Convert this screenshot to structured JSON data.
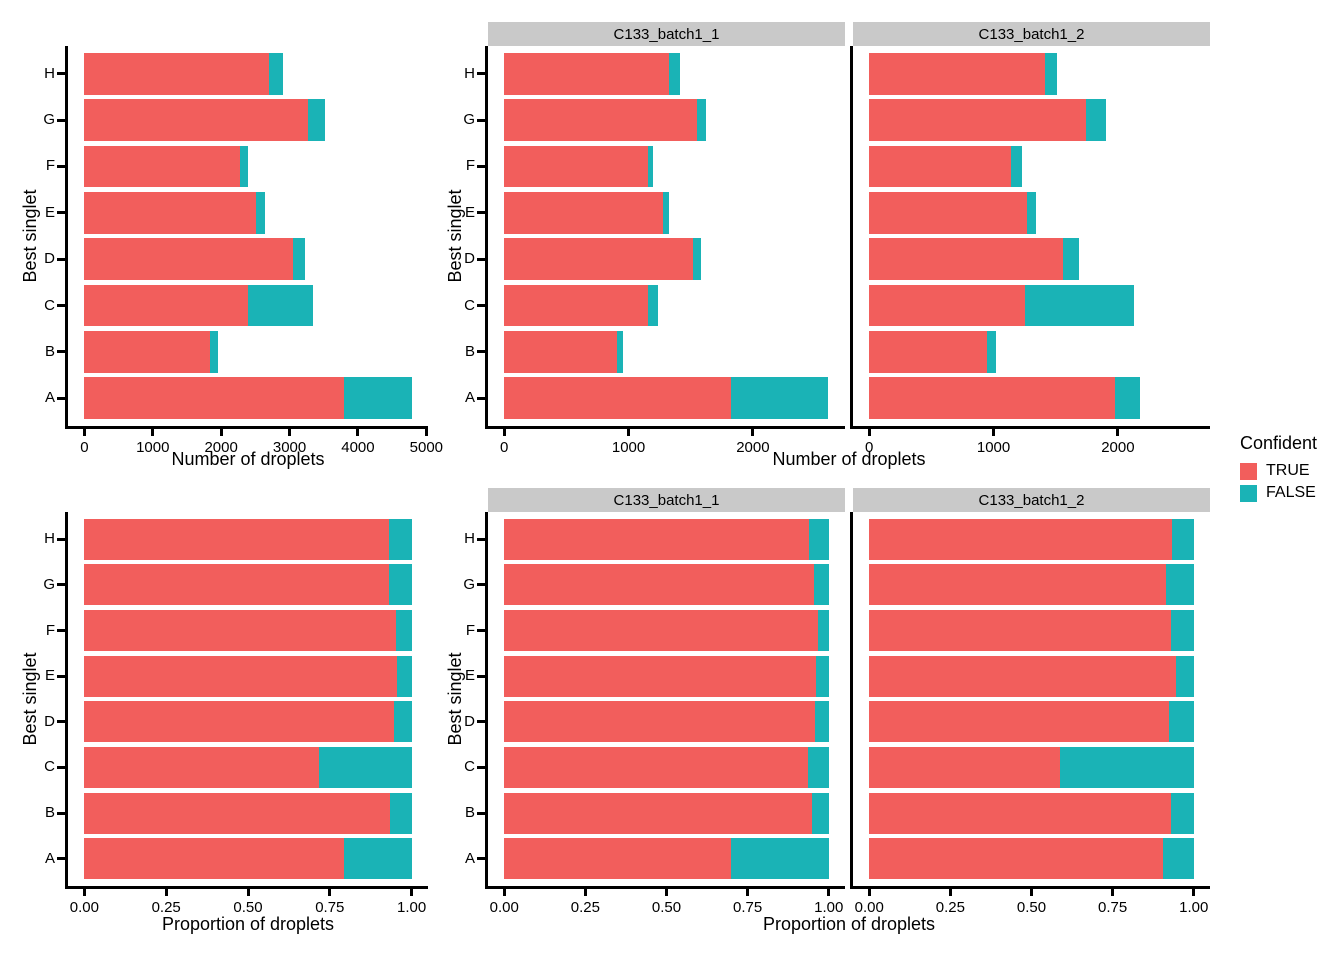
{
  "legend": {
    "title": "Confident",
    "entries": [
      {
        "label": "TRUE",
        "color": "#F25E5C"
      },
      {
        "label": "FALSE",
        "color": "#1AB3B6"
      }
    ]
  },
  "colors": {
    "true_fill": "#F25E5C",
    "false_fill": "#1AB3B6",
    "strip_bg": "#C9C9C9",
    "axis": "#000000",
    "background": "#FFFFFF"
  },
  "facets": [
    "C133_batch1_1",
    "C133_batch1_2"
  ],
  "categories": [
    "A",
    "B",
    "C",
    "D",
    "E",
    "F",
    "G",
    "H"
  ],
  "axes": {
    "counts_label": "Number of droplets",
    "proportion_label": "Proportion of droplets",
    "y_label": "Best singlet"
  },
  "chart_data": [
    {
      "type": "bar",
      "panel": "combined-counts",
      "orientation": "horizontal",
      "stacked": true,
      "grid": false,
      "legend_position": "right",
      "categories": [
        "A",
        "B",
        "C",
        "D",
        "E",
        "F",
        "G",
        "H"
      ],
      "series": [
        {
          "name": "TRUE",
          "values": [
            3790,
            1830,
            2395,
            3055,
            2515,
            2280,
            3270,
            2705
          ]
        },
        {
          "name": "FALSE",
          "values": [
            995,
            130,
            950,
            175,
            120,
            115,
            245,
            200
          ]
        }
      ],
      "xlabel": "Number of droplets",
      "ylabel": "Best singlet",
      "xlim": [
        0,
        4785
      ],
      "xticks": [
        {
          "v": 0,
          "label": "0"
        },
        {
          "v": 1000,
          "label": "1000"
        },
        {
          "v": 2000,
          "label": "2000"
        },
        {
          "v": 3000,
          "label": "3000"
        },
        {
          "v": 4000,
          "label": "4000"
        },
        {
          "v": 5000,
          "label": "5000"
        }
      ]
    },
    {
      "type": "bar",
      "panel": "faceted-counts",
      "orientation": "horizontal",
      "stacked": true,
      "grid": false,
      "categories": [
        "A",
        "B",
        "C",
        "D",
        "E",
        "F",
        "G",
        "H"
      ],
      "facets": [
        {
          "name": "C133_batch1_1",
          "series": [
            {
              "name": "TRUE",
              "values": [
                1820,
                905,
                1160,
                1515,
                1275,
                1155,
                1550,
                1325
              ]
            },
            {
              "name": "FALSE",
              "values": [
                780,
                50,
                80,
                65,
                50,
                40,
                75,
                85
              ]
            }
          ]
        },
        {
          "name": "C133_batch1_2",
          "series": [
            {
              "name": "TRUE",
              "values": [
                1975,
                950,
                1250,
                1555,
                1265,
                1140,
                1740,
                1410
              ]
            },
            {
              "name": "FALSE",
              "values": [
                205,
                70,
                880,
                130,
                75,
                85,
                165,
                100
              ]
            }
          ]
        }
      ],
      "xlabel": "Number of droplets",
      "ylabel": "Best singlet",
      "xlim": [
        0,
        2610
      ],
      "xticks": [
        {
          "v": 0,
          "label": "0"
        },
        {
          "v": 1000,
          "label": "1000"
        },
        {
          "v": 2000,
          "label": "2000"
        }
      ]
    },
    {
      "type": "bar",
      "panel": "combined-proportions",
      "orientation": "horizontal",
      "stacked": true,
      "grid": false,
      "categories": [
        "A",
        "B",
        "C",
        "D",
        "E",
        "F",
        "G",
        "H"
      ],
      "series": [
        {
          "name": "TRUE",
          "values": [
            0.792,
            0.934,
            0.716,
            0.946,
            0.954,
            0.952,
            0.93,
            0.931
          ]
        },
        {
          "name": "FALSE",
          "values": [
            0.208,
            0.066,
            0.284,
            0.054,
            0.046,
            0.048,
            0.07,
            0.069
          ]
        }
      ],
      "xlabel": "Proportion of droplets",
      "ylabel": "Best singlet",
      "xlim": [
        0,
        1
      ],
      "xticks": [
        {
          "v": 0,
          "label": "0.00"
        },
        {
          "v": 0.25,
          "label": "0.25"
        },
        {
          "v": 0.5,
          "label": "0.50"
        },
        {
          "v": 0.75,
          "label": "0.75"
        },
        {
          "v": 1,
          "label": "1.00"
        }
      ]
    },
    {
      "type": "bar",
      "panel": "faceted-proportions",
      "orientation": "horizontal",
      "stacked": true,
      "grid": false,
      "categories": [
        "A",
        "B",
        "C",
        "D",
        "E",
        "F",
        "G",
        "H"
      ],
      "facets": [
        {
          "name": "C133_batch1_1",
          "series": [
            {
              "name": "TRUE",
              "values": [
                0.7,
                0.948,
                0.935,
                0.959,
                0.962,
                0.967,
                0.954,
                0.94
              ]
            },
            {
              "name": "FALSE",
              "values": [
                0.3,
                0.052,
                0.065,
                0.041,
                0.038,
                0.033,
                0.046,
                0.06
              ]
            }
          ]
        },
        {
          "name": "C133_batch1_2",
          "series": [
            {
              "name": "TRUE",
              "values": [
                0.906,
                0.931,
                0.587,
                0.923,
                0.944,
                0.931,
                0.913,
                0.934
              ]
            },
            {
              "name": "FALSE",
              "values": [
                0.094,
                0.069,
                0.413,
                0.077,
                0.056,
                0.069,
                0.087,
                0.066
              ]
            }
          ]
        }
      ],
      "xlabel": "Proportion of droplets",
      "ylabel": "Best singlet",
      "xlim": [
        0,
        1
      ],
      "xticks": [
        {
          "v": 0,
          "label": "0.00"
        },
        {
          "v": 0.25,
          "label": "0.25"
        },
        {
          "v": 0.5,
          "label": "0.50"
        },
        {
          "v": 0.75,
          "label": "0.75"
        },
        {
          "v": 1,
          "label": "1.00"
        }
      ]
    }
  ]
}
